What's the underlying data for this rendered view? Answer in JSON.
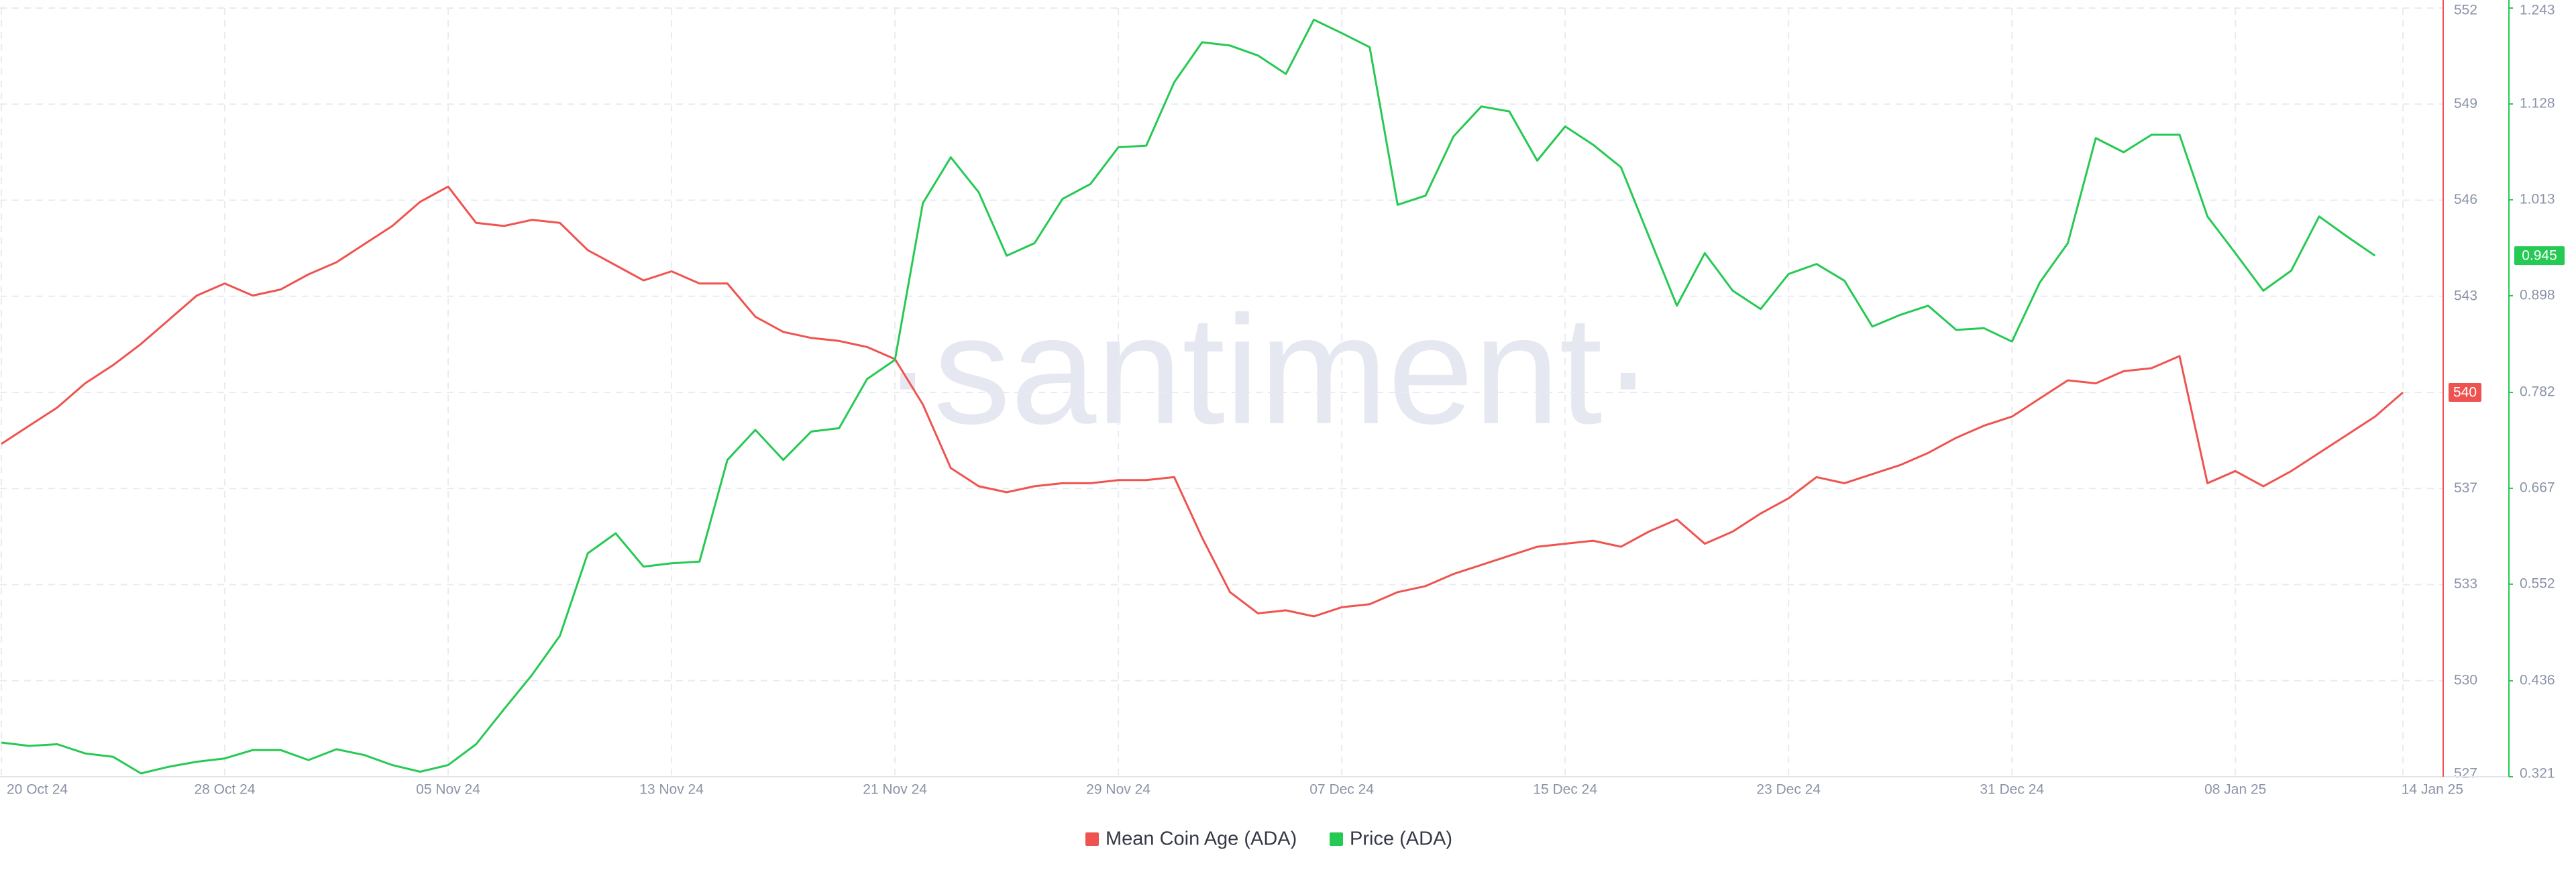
{
  "chart_data": {
    "type": "line",
    "watermark": "·santiment·",
    "x": [
      "20 Oct 24",
      "21 Oct 24",
      "22 Oct 24",
      "23 Oct 24",
      "24 Oct 24",
      "25 Oct 24",
      "26 Oct 24",
      "27 Oct 24",
      "28 Oct 24",
      "29 Oct 24",
      "30 Oct 24",
      "31 Oct 24",
      "01 Nov 24",
      "02 Nov 24",
      "03 Nov 24",
      "04 Nov 24",
      "05 Nov 24",
      "06 Nov 24",
      "07 Nov 24",
      "08 Nov 24",
      "09 Nov 24",
      "10 Nov 24",
      "11 Nov 24",
      "12 Nov 24",
      "13 Nov 24",
      "14 Nov 24",
      "15 Nov 24",
      "16 Nov 24",
      "17 Nov 24",
      "18 Nov 24",
      "19 Nov 24",
      "20 Nov 24",
      "21 Nov 24",
      "22 Nov 24",
      "23 Nov 24",
      "24 Nov 24",
      "25 Nov 24",
      "26 Nov 24",
      "27 Nov 24",
      "28 Nov 24",
      "29 Nov 24",
      "30 Nov 24",
      "01 Dec 24",
      "02 Dec 24",
      "03 Dec 24",
      "04 Dec 24",
      "05 Dec 24",
      "06 Dec 24",
      "07 Dec 24",
      "08 Dec 24",
      "09 Dec 24",
      "10 Dec 24",
      "11 Dec 24",
      "12 Dec 24",
      "13 Dec 24",
      "14 Dec 24",
      "15 Dec 24",
      "16 Dec 24",
      "17 Dec 24",
      "18 Dec 24",
      "19 Dec 24",
      "20 Dec 24",
      "21 Dec 24",
      "22 Dec 24",
      "23 Dec 24",
      "24 Dec 24",
      "25 Dec 24",
      "26 Dec 24",
      "27 Dec 24",
      "28 Dec 24",
      "29 Dec 24",
      "30 Dec 24",
      "31 Dec 24",
      "01 Jan 25",
      "02 Jan 25",
      "03 Jan 25",
      "04 Jan 25",
      "05 Jan 25",
      "06 Jan 25",
      "07 Jan 25",
      "08 Jan 25",
      "09 Jan 25",
      "10 Jan 25",
      "11 Jan 25",
      "12 Jan 25",
      "13 Jan 25",
      "14 Jan 25"
    ],
    "xticks": [
      "20 Oct 24",
      "28 Oct 24",
      "05 Nov 24",
      "13 Nov 24",
      "21 Nov 24",
      "29 Nov 24",
      "07 Dec 24",
      "15 Dec 24",
      "23 Dec 24",
      "31 Dec 24",
      "08 Jan 25",
      "14 Jan 25"
    ],
    "ylim": [
      527,
      552.4
    ],
    "yticks": [
      {
        "value": 527,
        "label": "527"
      },
      {
        "value": 530.175,
        "label": "530"
      },
      {
        "value": 533.35,
        "label": "533"
      },
      {
        "value": 536.525,
        "label": "537"
      },
      {
        "value": 539.7,
        "label": "540"
      },
      {
        "value": 542.875,
        "label": "543"
      },
      {
        "value": 546.05,
        "label": "546"
      },
      {
        "value": 549.225,
        "label": "549"
      },
      {
        "value": 552.4,
        "label": "552"
      }
    ],
    "y2lim": [
      0.321,
      1.243
    ],
    "y2ticks": [
      0.321,
      0.436,
      0.552,
      0.667,
      0.782,
      0.898,
      1.013,
      1.128,
      1.243
    ],
    "grid": true,
    "legend": "bottom",
    "series": [
      {
        "name": "Mean Coin Age (ADA)",
        "color": "#ef5350",
        "axis": "y",
        "current_label": "540",
        "values": [
          538.0,
          538.6,
          539.2,
          540.0,
          540.6,
          541.3,
          542.1,
          542.9,
          543.3,
          542.9,
          543.1,
          543.6,
          544.0,
          544.6,
          545.2,
          546.0,
          546.5,
          545.3,
          545.2,
          545.4,
          545.3,
          544.4,
          543.9,
          543.4,
          543.7,
          543.3,
          543.3,
          542.2,
          541.7,
          541.5,
          541.4,
          541.2,
          540.8,
          539.3,
          537.2,
          536.6,
          536.4,
          536.6,
          536.7,
          536.7,
          536.8,
          536.8,
          536.9,
          534.9,
          533.1,
          532.4,
          532.5,
          532.3,
          532.6,
          532.7,
          533.1,
          533.3,
          533.7,
          534.0,
          534.3,
          534.6,
          534.7,
          534.8,
          534.6,
          535.1,
          535.5,
          534.7,
          535.1,
          535.7,
          536.2,
          536.9,
          536.7,
          537.0,
          537.3,
          537.7,
          538.2,
          538.6,
          538.9,
          539.5,
          540.1,
          540.0,
          540.4,
          540.5,
          540.9,
          536.7,
          537.1,
          536.6,
          537.1,
          537.7,
          538.3,
          538.9,
          539.7
        ]
      },
      {
        "name": "Price (ADA)",
        "color": "#26c953",
        "axis": "y2",
        "current_label": "0.945",
        "values": [
          0.362,
          0.358,
          0.36,
          0.349,
          0.345,
          0.325,
          0.333,
          0.339,
          0.343,
          0.353,
          0.353,
          0.341,
          0.354,
          0.347,
          0.335,
          0.327,
          0.335,
          0.36,
          0.402,
          0.443,
          0.49,
          0.589,
          0.613,
          0.573,
          0.577,
          0.579,
          0.701,
          0.737,
          0.701,
          0.735,
          0.739,
          0.798,
          0.821,
          1.009,
          1.064,
          1.022,
          0.946,
          0.961,
          1.014,
          1.032,
          1.076,
          1.078,
          1.154,
          1.202,
          1.198,
          1.186,
          1.164,
          1.229,
          1.213,
          1.196,
          1.007,
          1.018,
          1.089,
          1.125,
          1.119,
          1.06,
          1.101,
          1.079,
          1.052,
          0.969,
          0.886,
          0.949,
          0.904,
          0.882,
          0.924,
          0.936,
          0.916,
          0.861,
          0.875,
          0.886,
          0.857,
          0.859,
          0.843,
          0.914,
          0.961,
          1.087,
          1.07,
          1.091,
          1.091,
          0.993,
          0.949,
          0.904,
          0.928,
          0.993,
          0.969,
          0.946,
          null
        ]
      }
    ]
  }
}
